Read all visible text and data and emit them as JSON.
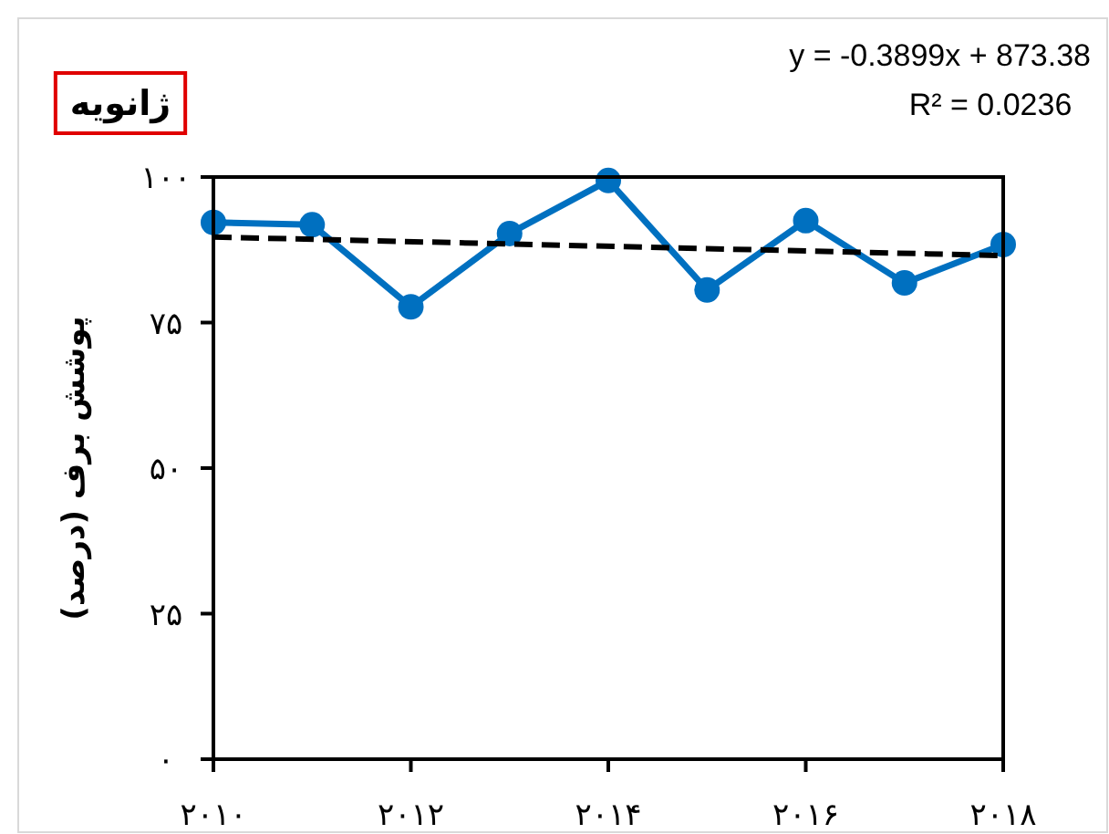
{
  "chart_data": {
    "type": "line",
    "title": "ژانویه",
    "ylabel": "پوشش برف (درصد)",
    "x": [
      2010,
      2011,
      2012,
      2013,
      2014,
      2015,
      2016,
      2017,
      2018
    ],
    "series": [
      {
        "color": "#0070c0",
        "marker": "circle",
        "line_style": "solid",
        "values": [
          92.2,
          91.8,
          77.7,
          90.3,
          99.4,
          80.6,
          92.5,
          81.8,
          88.4
        ]
      },
      {
        "color": "#000000",
        "marker": "none",
        "line_style": "dashed",
        "x": [
          2010,
          2018
        ],
        "values": [
          89.7,
          86.5
        ]
      }
    ],
    "annotations": [
      "y = -0.3899x + 873.38",
      "R² = 0.0236"
    ],
    "xlim": [
      2010,
      2018
    ],
    "xticks": [
      {
        "value": 2010,
        "label": "۲۰۱۰"
      },
      {
        "value": 2012,
        "label": "۲۰۱۲"
      },
      {
        "value": 2014,
        "label": "۲۰۱۴"
      },
      {
        "value": 2016,
        "label": "۲۰۱۶"
      },
      {
        "value": 2018,
        "label": "۲۰۱۸"
      }
    ],
    "ylim": [
      0,
      100
    ],
    "yticks": [
      {
        "value": 0,
        "label": "۰"
      },
      {
        "value": 25,
        "label": "۲۵"
      },
      {
        "value": 50,
        "label": "۵۰"
      },
      {
        "value": 75,
        "label": "۷۵"
      },
      {
        "value": 100,
        "label": "۱۰۰"
      }
    ],
    "grid": false
  }
}
